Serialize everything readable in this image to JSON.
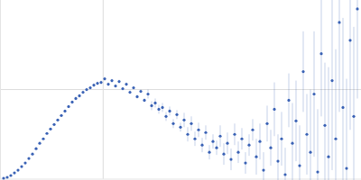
{
  "chart_data": {
    "type": "scatter",
    "color": "#3a62b5",
    "marker": "circle",
    "grid": true,
    "tick_labels": false,
    "xlim": [
      0,
      3.5
    ],
    "ylim": [
      0,
      2
    ],
    "xticks": [
      1
    ],
    "yticks": [
      1
    ],
    "x": [
      0.035,
      0.07,
      0.105,
      0.14,
      0.175,
      0.21,
      0.245,
      0.28,
      0.315,
      0.35,
      0.385,
      0.42,
      0.455,
      0.49,
      0.525,
      0.56,
      0.595,
      0.63,
      0.665,
      0.7,
      0.735,
      0.77,
      0.805,
      0.84,
      0.875,
      0.91,
      0.945,
      0.98,
      1.015,
      1.05,
      1.085,
      1.12,
      1.155,
      1.19,
      1.225,
      1.26,
      1.295,
      1.33,
      1.365,
      1.4,
      1.435,
      1.47,
      1.505,
      1.54,
      1.575,
      1.61,
      1.645,
      1.68,
      1.715,
      1.75,
      1.785,
      1.82,
      1.855,
      1.89,
      1.925,
      1.96,
      1.995,
      2.03,
      2.065,
      2.1,
      2.135,
      2.17,
      2.205,
      2.24,
      2.275,
      2.31,
      2.345,
      2.38,
      2.415,
      2.45,
      2.485,
      2.52,
      2.555,
      2.59,
      2.625,
      2.66,
      2.695,
      2.73,
      2.765,
      2.8,
      2.835,
      2.87,
      2.905,
      2.94,
      2.975,
      3.01,
      3.045,
      3.08,
      3.115,
      3.15,
      3.185,
      3.22,
      3.255,
      3.29,
      3.325,
      3.36,
      3.395,
      3.43,
      3.465
    ],
    "values": [
      0.01,
      0.02,
      0.04,
      0.07,
      0.1,
      0.14,
      0.18,
      0.23,
      0.28,
      0.34,
      0.4,
      0.45,
      0.51,
      0.56,
      0.61,
      0.66,
      0.71,
      0.76,
      0.81,
      0.86,
      0.9,
      0.93,
      0.97,
      1.0,
      1.02,
      1.05,
      1.07,
      1.08,
      1.12,
      1.06,
      1.1,
      1.04,
      1.09,
      1.01,
      1.06,
      0.97,
      1.02,
      0.92,
      0.98,
      0.88,
      0.95,
      0.82,
      0.85,
      0.78,
      0.8,
      0.7,
      0.76,
      0.62,
      0.72,
      0.58,
      0.66,
      0.5,
      0.62,
      0.45,
      0.55,
      0.38,
      0.52,
      0.3,
      0.42,
      0.35,
      0.48,
      0.28,
      0.4,
      0.22,
      0.5,
      0.3,
      0.45,
      0.18,
      0.38,
      0.55,
      0.25,
      0.42,
      0.1,
      0.62,
      0.35,
      0.78,
      0.2,
      0.45,
      0.05,
      0.88,
      0.4,
      0.65,
      0.15,
      1.2,
      0.5,
      0.3,
      0.95,
      0.08,
      1.4,
      0.6,
      0.25,
      1.1,
      0.45,
      1.75,
      0.8,
      0.12,
      1.55,
      0.7,
      1.9
    ],
    "errors": [
      0.01,
      0.01,
      0.01,
      0.01,
      0.01,
      0.01,
      0.01,
      0.01,
      0.01,
      0.01,
      0.01,
      0.01,
      0.01,
      0.01,
      0.01,
      0.01,
      0.01,
      0.01,
      0.01,
      0.01,
      0.02,
      0.02,
      0.02,
      0.02,
      0.02,
      0.02,
      0.02,
      0.02,
      0.02,
      0.02,
      0.02,
      0.02,
      0.02,
      0.02,
      0.02,
      0.02,
      0.02,
      0.02,
      0.02,
      0.02,
      0.05,
      0.05,
      0.05,
      0.05,
      0.05,
      0.05,
      0.05,
      0.05,
      0.05,
      0.05,
      0.08,
      0.08,
      0.08,
      0.08,
      0.08,
      0.08,
      0.08,
      0.08,
      0.08,
      0.08,
      0.12,
      0.12,
      0.12,
      0.12,
      0.12,
      0.12,
      0.12,
      0.12,
      0.12,
      0.12,
      0.2,
      0.2,
      0.2,
      0.2,
      0.2,
      0.3,
      0.3,
      0.3,
      0.3,
      0.3,
      0.45,
      0.45,
      0.45,
      0.45,
      0.45,
      0.7,
      0.7,
      0.7,
      0.7,
      0.7,
      1.0,
      1.0,
      1.0,
      1.0,
      1.0,
      1.0,
      1.0,
      1.0,
      1.0
    ]
  }
}
